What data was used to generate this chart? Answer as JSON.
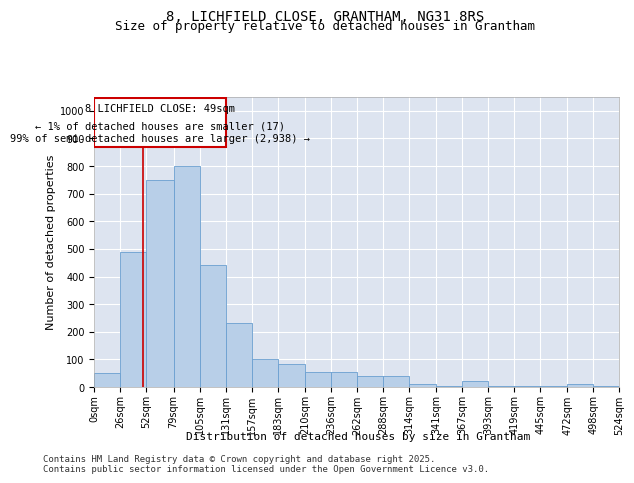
{
  "title_line1": "8, LICHFIELD CLOSE, GRANTHAM, NG31 8RS",
  "title_line2": "Size of property relative to detached houses in Grantham",
  "xlabel": "Distribution of detached houses by size in Grantham",
  "ylabel": "Number of detached properties",
  "background_color": "#dde4f0",
  "bar_color": "#b8cfe8",
  "bar_edge_color": "#6a9fd0",
  "annotation_box_color": "#cc0000",
  "annotation_line1": "8 LICHFIELD CLOSE: 49sqm",
  "annotation_line2": "← 1% of detached houses are smaller (17)",
  "annotation_line3": "99% of semi-detached houses are larger (2,938) →",
  "vline_x": 49,
  "vline_color": "#cc0000",
  "bin_edges": [
    0,
    26,
    52,
    79,
    105,
    131,
    157,
    183,
    210,
    236,
    262,
    288,
    314,
    341,
    367,
    393,
    419,
    445,
    472,
    498,
    524
  ],
  "bar_heights": [
    50,
    490,
    750,
    800,
    440,
    230,
    100,
    85,
    55,
    55,
    40,
    40,
    10,
    5,
    20,
    5,
    5,
    5,
    10,
    5
  ],
  "ylim": [
    0,
    1050
  ],
  "yticks": [
    0,
    100,
    200,
    300,
    400,
    500,
    600,
    700,
    800,
    900,
    1000
  ],
  "footer_line1": "Contains HM Land Registry data © Crown copyright and database right 2025.",
  "footer_line2": "Contains public sector information licensed under the Open Government Licence v3.0.",
  "title_fontsize": 10,
  "subtitle_fontsize": 9,
  "annotation_fontsize": 7.5,
  "axis_label_fontsize": 8,
  "tick_fontsize": 7,
  "footer_fontsize": 6.5
}
